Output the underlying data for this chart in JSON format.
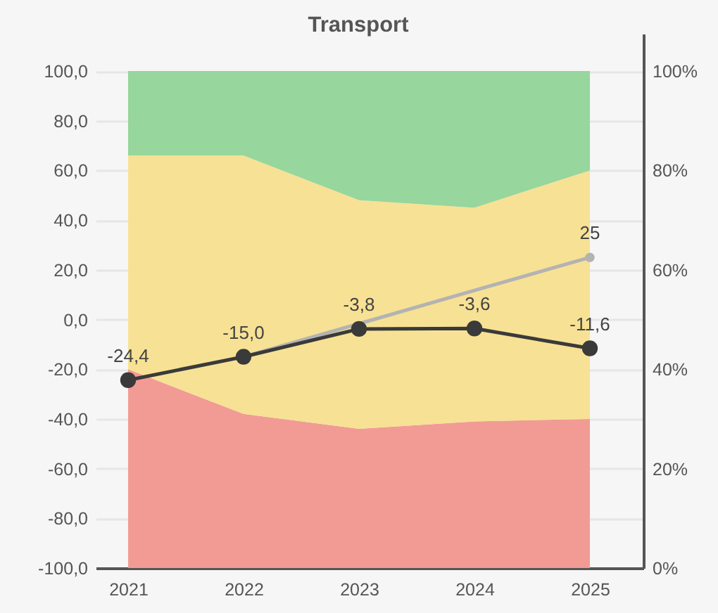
{
  "chart_data": {
    "type": "area",
    "title": "Transport",
    "categories": [
      "2021",
      "2022",
      "2023",
      "2024",
      "2025"
    ],
    "stacked": true,
    "series": [
      {
        "axis": "y2",
        "color": "#f29b94",
        "values": [
          40,
          31,
          28,
          29.5,
          30
        ]
      },
      {
        "axis": "y2",
        "color": "#f7e194",
        "values": [
          43,
          52,
          46,
          43,
          50
        ]
      },
      {
        "axis": "y2",
        "color": "#97d69c",
        "values": [
          17,
          17,
          26,
          27.5,
          20
        ]
      },
      {
        "type": "line",
        "color": "#b3b3b3",
        "marker": "none",
        "values": [
          null,
          -15.0,
          -1.7,
          11.7,
          25
        ],
        "value_labels": [
          null,
          null,
          null,
          null,
          "25"
        ]
      },
      {
        "type": "scatter",
        "color": "#b3b3b3",
        "marker": "circle",
        "values": [
          null,
          null,
          null,
          null,
          25
        ]
      },
      {
        "type": "line",
        "color": "#3a3a3a",
        "marker": "circle",
        "values": [
          -24.4,
          -15.0,
          -3.8,
          -3.6,
          -11.6
        ],
        "value_labels": [
          "-24,4",
          "-15,0",
          "-3,8",
          "-3,6",
          "-11,6"
        ]
      }
    ],
    "ylim": [
      -100,
      115
    ],
    "yticks": [
      {
        "value": -100,
        "label": "-100,0"
      },
      {
        "value": -80,
        "label": "-80,0"
      },
      {
        "value": -60,
        "label": "-60,0"
      },
      {
        "value": -40,
        "label": "-40,0"
      },
      {
        "value": -20,
        "label": "-20,0"
      },
      {
        "value": 0,
        "label": "0,0"
      },
      {
        "value": 20,
        "label": "20,0"
      },
      {
        "value": 40,
        "label": "40,0"
      },
      {
        "value": 60,
        "label": "60,0"
      },
      {
        "value": 80,
        "label": "80,0"
      },
      {
        "value": 100,
        "label": "100,0"
      }
    ],
    "y2lim": [
      0,
      107.5
    ],
    "y2ticks": [
      {
        "value": 0,
        "label": "0%"
      },
      {
        "value": 20,
        "label": "20%"
      },
      {
        "value": 40,
        "label": "40%"
      },
      {
        "value": 60,
        "label": "60%"
      },
      {
        "value": 80,
        "label": "80%"
      },
      {
        "value": 100,
        "label": "100%"
      }
    ],
    "grid": "y"
  }
}
